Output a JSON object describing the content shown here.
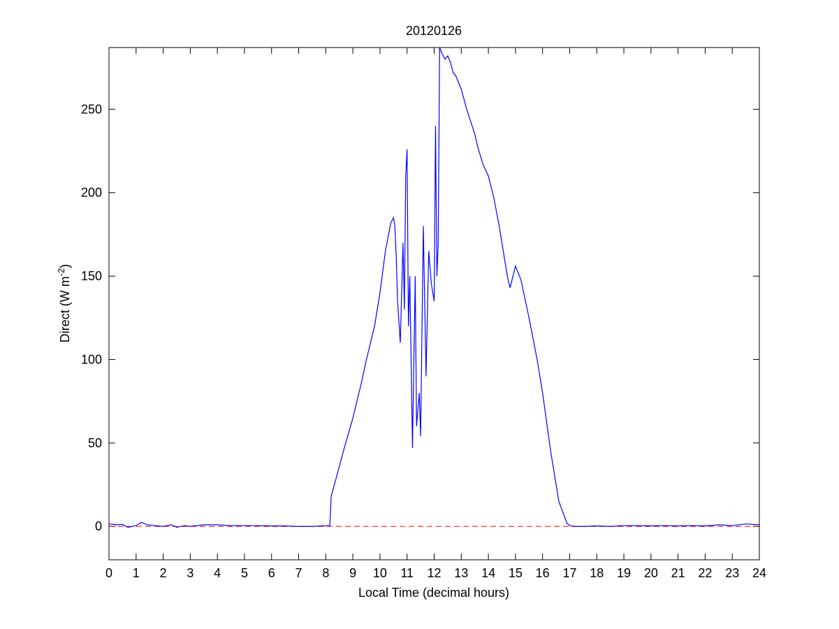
{
  "chart_data": {
    "type": "line",
    "title": "20120126",
    "xlabel": "Local Time (decimal hours)",
    "ylabel_parts": [
      "Direct (W m",
      "-2",
      ")"
    ],
    "color": "#0000ff",
    "xlim": [
      0,
      24
    ],
    "ylim": [
      -20,
      287
    ],
    "xticks": [
      0,
      1,
      2,
      3,
      4,
      5,
      6,
      7,
      8,
      9,
      10,
      11,
      12,
      13,
      14,
      15,
      16,
      17,
      18,
      19,
      20,
      21,
      22,
      23,
      24
    ],
    "yticks": [
      0,
      50,
      100,
      150,
      200,
      250
    ],
    "reference_line": {
      "value": 0,
      "color": "#ff0000",
      "dashed": true
    },
    "x": [
      0,
      0.3,
      0.5,
      0.7,
      1.0,
      1.2,
      1.4,
      1.7,
      2.0,
      2.3,
      2.5,
      2.8,
      3.0,
      3.5,
      4.0,
      4.5,
      5.0,
      5.5,
      6.0,
      6.5,
      7.0,
      7.5,
      8.0,
      8.15,
      8.2,
      8.4,
      8.7,
      9.0,
      9.3,
      9.5,
      9.8,
      10.0,
      10.2,
      10.4,
      10.5,
      10.55,
      10.6,
      10.65,
      10.75,
      10.85,
      10.9,
      10.95,
      11.0,
      11.05,
      11.1,
      11.2,
      11.3,
      11.35,
      11.45,
      11.5,
      11.6,
      11.7,
      11.8,
      11.9,
      12.0,
      12.05,
      12.1,
      12.15,
      12.2,
      12.3,
      12.4,
      12.5,
      12.6,
      12.7,
      12.8,
      13.0,
      13.2,
      13.4,
      13.5,
      13.6,
      13.8,
      14.0,
      14.2,
      14.4,
      14.5,
      14.6,
      14.7,
      14.8,
      15.0,
      15.2,
      15.5,
      15.8,
      16.0,
      16.3,
      16.6,
      16.9,
      17.0,
      17.2,
      17.5,
      18.0,
      18.5,
      19.0,
      19.5,
      20.0,
      20.5,
      21.0,
      21.5,
      22.0,
      22.5,
      23.0,
      23.5,
      24.0
    ],
    "values": [
      1.5,
      1,
      1.2,
      -0.5,
      0.5,
      2.5,
      1,
      0.5,
      0,
      1,
      -0.5,
      0.5,
      0,
      1,
      1,
      0.5,
      0.5,
      0.5,
      0.3,
      0.3,
      0,
      0,
      0.5,
      0.5,
      18,
      30,
      48,
      65,
      85,
      100,
      120,
      140,
      165,
      182,
      185,
      180,
      162,
      135,
      110,
      170,
      130,
      210,
      226,
      120,
      150,
      47,
      150,
      60,
      80,
      54,
      180,
      90,
      165,
      145,
      135,
      240,
      150,
      170,
      287,
      283,
      280,
      282,
      278,
      272,
      270,
      262,
      250,
      240,
      235,
      228,
      217,
      210,
      197,
      180,
      170,
      160,
      150,
      143,
      156,
      148,
      125,
      100,
      80,
      45,
      15,
      2,
      0.5,
      0,
      0,
      0.3,
      0,
      0.5,
      0.5,
      0.3,
      0.5,
      0.3,
      0.5,
      0.3,
      1,
      0.5,
      1.5,
      1
    ]
  }
}
